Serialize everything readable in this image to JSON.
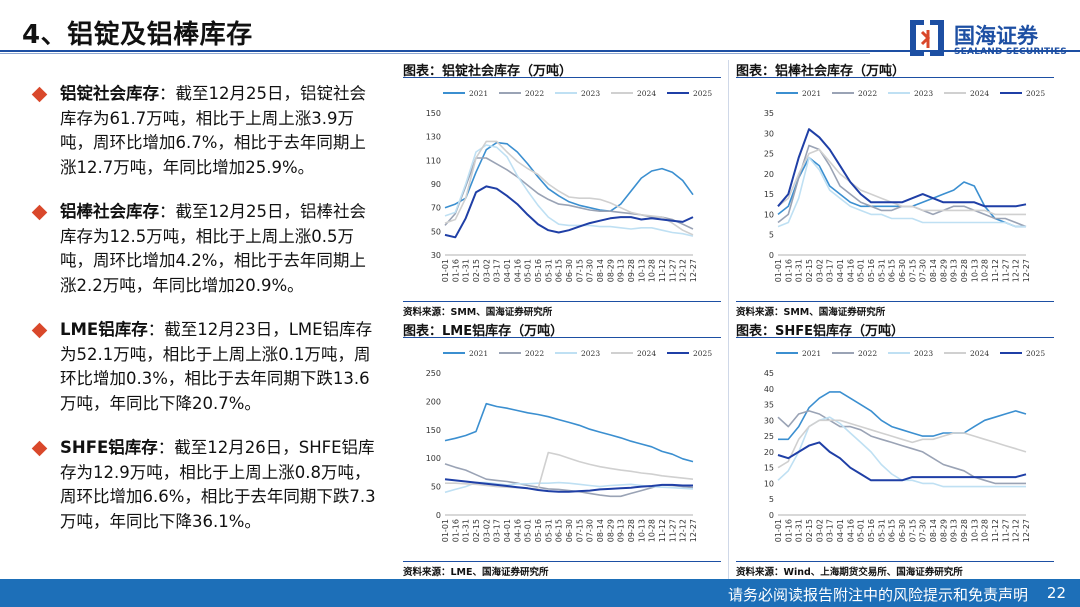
{
  "header": {
    "title": "4、铝锭及铝棒库存",
    "logo_cn": "国海证券",
    "logo_en": "SEALAND SECURITIES",
    "accent": "#1d4fa3"
  },
  "bullets": [
    {
      "heading": "铝锭社会库存",
      "text": "：截至12月25日，铝锭社会库存为61.7万吨，相比于上周上涨3.9万吨，周环比增加6.7%，相比于去年同期上涨12.7万吨，年同比增加25.9%。"
    },
    {
      "heading": "铝棒社会库存",
      "text": "：截至12月25日，铝棒社会库存为12.5万吨，相比于上周上涨0.5万吨，周环比增加4.2%，相比于去年同期上涨2.2万吨，年同比增加20.9%。"
    },
    {
      "heading": "LME铝库存",
      "text": "：截至12月23日，LME铝库存为52.1万吨，相比于上周上涨0.1万吨，周环比增加0.3%，相比于去年同期下跌13.6万吨，年同比下降20.7%。"
    },
    {
      "heading": "SHFE铝库存",
      "text": "：截至12月26日，SHFE铝库存为12.9万吨，相比于上周上涨0.8万吨，周环比增加6.6%，相比于去年同期下跌7.3万吨，年同比下降36.1%。"
    }
  ],
  "footer": {
    "disclaimer": "请务必阅读报告附注中的风险提示和免责声明",
    "page": "22"
  },
  "series_colors": {
    "2021": "#3b8fd0",
    "2022": "#9aa3b5",
    "2023": "#bfe0f3",
    "2024": "#d0d0d0",
    "2025": "#1f3fa6"
  },
  "chart_data": [
    {
      "type": "line",
      "panel_title": "图表：铝锭社会库存（万吨）",
      "source": "资料来源：SMM、国海证券研究所",
      "ylim": [
        30,
        150
      ],
      "yticks": [
        30,
        50,
        70,
        90,
        110,
        130,
        150
      ],
      "legend_position": "top",
      "x": [
        "01-01",
        "01-16",
        "01-31",
        "02-15",
        "03-02",
        "03-17",
        "04-01",
        "04-16",
        "05-01",
        "05-16",
        "05-31",
        "06-15",
        "06-30",
        "07-15",
        "07-30",
        "08-14",
        "08-29",
        "09-13",
        "09-28",
        "10-13",
        "10-28",
        "11-12",
        "11-27",
        "12-12",
        "12-27"
      ],
      "series": [
        {
          "name": "2021",
          "values": [
            70,
            73,
            78,
            100,
            119,
            125,
            124,
            117,
            107,
            96,
            86,
            80,
            75,
            72,
            70,
            68,
            67,
            73,
            84,
            95,
            101,
            103,
            100,
            93,
            81
          ]
        },
        {
          "name": "2022",
          "values": [
            55,
            65,
            88,
            112,
            112,
            107,
            102,
            96,
            89,
            82,
            77,
            73,
            72,
            70,
            68,
            67,
            67,
            66,
            65,
            64,
            62,
            62,
            60,
            56,
            52
          ]
        },
        {
          "name": "2023",
          "values": [
            63,
            66,
            90,
            117,
            123,
            121,
            113,
            97,
            84,
            72,
            62,
            56,
            55,
            55,
            55,
            54,
            54,
            53,
            52,
            53,
            53,
            51,
            49,
            48,
            46
          ]
        },
        {
          "name": "2024",
          "values": [
            57,
            60,
            78,
            112,
            126,
            126,
            117,
            109,
            103,
            98,
            90,
            84,
            79,
            78,
            78,
            77,
            74,
            70,
            66,
            64,
            63,
            62,
            57,
            51,
            47
          ]
        },
        {
          "name": "2025",
          "values": [
            47,
            45,
            61,
            83,
            88,
            86,
            80,
            73,
            64,
            56,
            51,
            49,
            51,
            54,
            57,
            59,
            61,
            62,
            62,
            60,
            61,
            60,
            59,
            58,
            62
          ]
        }
      ]
    },
    {
      "type": "line",
      "panel_title": "图表：铝棒社会库存（万吨）",
      "source": "资料来源：SMM、国海证券研究所",
      "ylim": [
        0,
        35
      ],
      "yticks": [
        0,
        5,
        10,
        15,
        20,
        25,
        30,
        35
      ],
      "legend_position": "top",
      "x": [
        "01-01",
        "01-16",
        "01-31",
        "02-15",
        "03-02",
        "03-17",
        "04-01",
        "04-16",
        "05-01",
        "05-16",
        "05-31",
        "06-15",
        "06-30",
        "07-15",
        "07-30",
        "08-14",
        "08-29",
        "09-13",
        "09-28",
        "10-13",
        "10-28",
        "11-12",
        "11-27",
        "12-12",
        "12-27"
      ],
      "series": [
        {
          "name": "2021",
          "values": [
            10,
            12,
            19,
            24,
            22,
            17,
            15,
            13,
            12,
            12,
            12,
            12,
            12,
            12,
            13,
            14,
            15,
            16,
            18,
            17,
            12,
            9,
            8,
            7,
            7
          ]
        },
        {
          "name": "2022",
          "values": [
            8,
            10,
            19,
            27,
            26,
            22,
            17,
            15,
            13,
            12,
            11,
            11,
            12,
            12,
            11,
            10,
            11,
            12,
            12,
            11,
            10,
            9,
            9,
            8,
            7
          ]
        },
        {
          "name": "2023",
          "values": [
            7,
            8,
            14,
            24,
            21,
            16,
            14,
            12,
            11,
            10,
            10,
            9,
            9,
            9,
            8,
            8,
            8,
            8,
            8,
            8,
            8,
            8,
            8,
            7,
            7
          ]
        },
        {
          "name": "2024",
          "values": [
            12,
            14,
            20,
            25,
            26,
            23,
            20,
            18,
            16,
            15,
            14,
            13,
            12,
            12,
            11,
            11,
            11,
            11,
            11,
            11,
            11,
            10,
            10,
            10,
            10
          ]
        },
        {
          "name": "2025",
          "values": [
            12,
            15,
            24,
            31,
            29,
            26,
            22,
            18,
            15,
            13,
            13,
            13,
            13,
            14,
            15,
            14,
            13,
            13,
            13,
            13,
            12,
            12,
            12,
            12,
            12.5
          ]
        }
      ]
    },
    {
      "type": "line",
      "panel_title": "图表：LME铝库存（万吨）",
      "source": "资料来源：LME、国海证券研究所",
      "ylim": [
        0,
        250
      ],
      "yticks": [
        0,
        50,
        100,
        150,
        200,
        250
      ],
      "legend_position": "top",
      "x": [
        "01-01",
        "01-16",
        "01-31",
        "02-15",
        "03-02",
        "03-17",
        "04-01",
        "04-16",
        "05-01",
        "05-16",
        "05-31",
        "06-15",
        "06-30",
        "07-15",
        "07-30",
        "08-14",
        "08-29",
        "09-13",
        "09-28",
        "10-13",
        "10-28",
        "11-12",
        "11-27",
        "12-12",
        "12-27"
      ],
      "series": [
        {
          "name": "2021",
          "values": [
            131,
            135,
            140,
            147,
            196,
            191,
            188,
            184,
            180,
            177,
            173,
            168,
            163,
            158,
            151,
            146,
            141,
            136,
            130,
            125,
            120,
            112,
            107,
            99,
            94
          ]
        },
        {
          "name": "2022",
          "values": [
            90,
            84,
            79,
            71,
            63,
            61,
            59,
            56,
            52,
            49,
            46,
            45,
            43,
            41,
            38,
            35,
            33,
            33,
            38,
            43,
            48,
            53,
            52,
            50,
            48
          ]
        },
        {
          "name": "2023",
          "values": [
            40,
            45,
            50,
            57,
            57,
            55,
            53,
            55,
            55,
            56,
            56,
            57,
            56,
            54,
            52,
            50,
            52,
            53,
            54,
            52,
            50,
            49,
            48,
            47,
            46
          ]
        },
        {
          "name": "2024",
          "values": [
            56,
            56,
            55,
            54,
            52,
            50,
            49,
            48,
            47,
            46,
            110,
            106,
            100,
            94,
            89,
            85,
            82,
            79,
            77,
            74,
            72,
            69,
            67,
            65,
            63
          ]
        },
        {
          "name": "2025",
          "values": [
            63,
            61,
            59,
            57,
            55,
            53,
            51,
            49,
            47,
            44,
            42,
            41,
            41,
            42,
            43,
            45,
            46,
            47,
            48,
            50,
            51,
            53,
            53,
            52,
            52
          ]
        }
      ]
    },
    {
      "type": "line",
      "panel_title": "图表：SHFE铝库存（万吨）",
      "source": "资料来源：Wind、上海期货交易所、国海证券研究所",
      "ylim": [
        0,
        45
      ],
      "yticks": [
        0,
        5,
        10,
        15,
        20,
        25,
        30,
        35,
        40,
        45
      ],
      "legend_position": "top",
      "x": [
        "01-01",
        "01-16",
        "01-31",
        "02-15",
        "03-02",
        "03-17",
        "04-01",
        "04-16",
        "05-01",
        "05-16",
        "05-31",
        "06-15",
        "06-30",
        "07-15",
        "07-30",
        "08-14",
        "08-29",
        "09-13",
        "09-28",
        "10-13",
        "10-28",
        "11-12",
        "11-27",
        "12-12",
        "12-27"
      ],
      "series": [
        {
          "name": "2021",
          "values": [
            24,
            24,
            28,
            34,
            37,
            39,
            39,
            37,
            35,
            33,
            30,
            28,
            27,
            26,
            25,
            25,
            26,
            26,
            26,
            28,
            30,
            31,
            32,
            33,
            32
          ]
        },
        {
          "name": "2022",
          "values": [
            31,
            28,
            32,
            33,
            32,
            30,
            28,
            28,
            27,
            25,
            24,
            23,
            22,
            21,
            20,
            18,
            16,
            15,
            14,
            12,
            11,
            10,
            10,
            10,
            10
          ]
        },
        {
          "name": "2023",
          "values": [
            11,
            14,
            20,
            28,
            30,
            31,
            29,
            26,
            23,
            20,
            16,
            13,
            11,
            11,
            10,
            10,
            9,
            9,
            9,
            9,
            9,
            9,
            9,
            9,
            9
          ]
        },
        {
          "name": "2024",
          "values": [
            15,
            17,
            24,
            28,
            30,
            30,
            30,
            29,
            28,
            27,
            26,
            25,
            24,
            23,
            24,
            24,
            25,
            26,
            26,
            25,
            24,
            23,
            22,
            21,
            20
          ]
        },
        {
          "name": "2025",
          "values": [
            19,
            18,
            20,
            22,
            23,
            20,
            18,
            15,
            13,
            11,
            11,
            11,
            11,
            12,
            12,
            12,
            12,
            12,
            12,
            12,
            12,
            12,
            12,
            12,
            12.9
          ]
        }
      ]
    }
  ]
}
